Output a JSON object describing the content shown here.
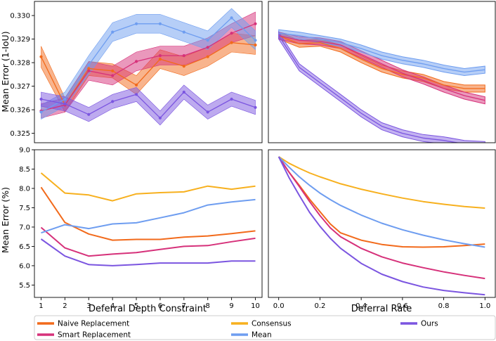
{
  "colors": {
    "naive": "#f26a1b",
    "smart": "#d6317a",
    "consensus": "#f7b01e",
    "mean": "#6e9df0",
    "ours": "#7b55e0",
    "axis": "#000000"
  },
  "legend": {
    "items": [
      {
        "key": "naive",
        "label": "Naive Replacement",
        "color": "#f26a1b"
      },
      {
        "key": "consensus",
        "label": "Consensus",
        "color": "#f7b01e"
      },
      {
        "key": "ours",
        "label": "Ours",
        "color": "#7b55e0"
      },
      {
        "key": "smart",
        "label": "Smart Replacement",
        "color": "#d6317a"
      },
      {
        "key": "mean",
        "label": "Mean",
        "color": "#6e9df0"
      }
    ]
  },
  "chart_data": [
    {
      "id": "top_left",
      "type": "line",
      "title": "",
      "xlabel": "",
      "ylabel": "Mean Error (1-IoU)",
      "xlim": [
        0.72,
        10.28
      ],
      "ylim": [
        0.3246,
        0.3306
      ],
      "xticks": [],
      "yticks": [
        0.325,
        0.326,
        0.327,
        0.328,
        0.329,
        0.33
      ],
      "ytick_labels": [
        "0.325",
        "0.326",
        "0.327",
        "0.328",
        "0.329",
        "0.330"
      ],
      "x": [
        1,
        2,
        3,
        4,
        5,
        6,
        7,
        8,
        9,
        10
      ],
      "series": [
        {
          "key": "naive",
          "name": "Naive Replacement",
          "markers": true,
          "values": [
            0.32825,
            0.3262,
            0.32775,
            0.32765,
            0.32705,
            0.32815,
            0.32785,
            0.32825,
            0.32885,
            0.32875
          ],
          "band": [
            0.00045,
            0.0003,
            0.0003,
            0.0003,
            0.0004,
            0.0004,
            0.0004,
            0.0004,
            0.0004,
            0.0004
          ]
        },
        {
          "key": "smart",
          "name": "Smart Replacement",
          "markers": true,
          "values": [
            0.32595,
            0.3262,
            0.32765,
            0.32745,
            0.32805,
            0.3283,
            0.3283,
            0.32865,
            0.32925,
            0.32965
          ],
          "band": [
            0.0003,
            0.0003,
            0.0004,
            0.0004,
            0.0004,
            0.0004,
            0.0004,
            0.0004,
            0.0004,
            0.0005
          ]
        },
        {
          "key": "mean",
          "name": "Mean",
          "markers": true,
          "values": [
            0.3259,
            0.32645,
            0.3279,
            0.3293,
            0.32965,
            0.32965,
            0.3293,
            0.32895,
            0.3299,
            0.32895
          ],
          "band": [
            0.0003,
            0.0003,
            0.0004,
            0.0004,
            0.0004,
            0.0004,
            0.0004,
            0.0004,
            0.0004,
            0.0004
          ]
        },
        {
          "key": "ours",
          "name": "Ours",
          "markers": true,
          "values": [
            0.32645,
            0.32625,
            0.3258,
            0.32635,
            0.32665,
            0.32565,
            0.32675,
            0.3259,
            0.32645,
            0.3261
          ],
          "band": [
            0.0003,
            0.0003,
            0.0003,
            0.0003,
            0.0003,
            0.0003,
            0.0003,
            0.0003,
            0.0003,
            0.0003
          ]
        }
      ]
    },
    {
      "id": "top_right",
      "type": "line",
      "title": "",
      "xlabel": "",
      "ylabel": "",
      "xlim": [
        -0.05,
        1.05
      ],
      "ylim": [
        0.3246,
        0.3306
      ],
      "xticks": [],
      "yticks": [],
      "x": [
        0,
        0.1,
        0.2,
        0.3,
        0.4,
        0.5,
        0.6,
        0.7,
        0.8,
        0.9,
        1.0
      ],
      "series": [
        {
          "key": "naive",
          "name": "Naive Replacement",
          "markers": false,
          "values": [
            0.32915,
            0.3288,
            0.32885,
            0.3286,
            0.32815,
            0.32775,
            0.3275,
            0.32735,
            0.32705,
            0.3269,
            0.3269
          ],
          "band": [
            0.00015,
            0.00015,
            0.00015,
            0.00015,
            0.00015,
            0.00015,
            0.00015,
            0.00015,
            0.00015,
            0.00015,
            0.00015
          ]
        },
        {
          "key": "smart",
          "name": "Smart Replacement",
          "markers": false,
          "values": [
            0.32915,
            0.32895,
            0.3289,
            0.32875,
            0.32835,
            0.32795,
            0.32755,
            0.32725,
            0.3269,
            0.3266,
            0.3264
          ],
          "band": [
            0.00015,
            0.00015,
            0.00015,
            0.00015,
            0.00015,
            0.00015,
            0.00015,
            0.00015,
            0.00015,
            0.00015,
            0.00015
          ]
        },
        {
          "key": "mean",
          "name": "Mean",
          "markers": false,
          "values": [
            0.32925,
            0.32915,
            0.329,
            0.32885,
            0.3286,
            0.3283,
            0.3281,
            0.32795,
            0.32775,
            0.3276,
            0.3277
          ],
          "band": [
            0.00015,
            0.00015,
            0.00015,
            0.00015,
            0.00015,
            0.00015,
            0.00015,
            0.00015,
            0.00015,
            0.00015,
            0.00015
          ]
        },
        {
          "key": "ours",
          "name": "Ours",
          "markers": false,
          "values": [
            0.32915,
            0.3278,
            0.32715,
            0.3265,
            0.32585,
            0.3253,
            0.325,
            0.3248,
            0.3247,
            0.32455,
            0.3245
          ],
          "band": [
            0.00015,
            0.00015,
            0.00015,
            0.00015,
            0.00015,
            0.00015,
            0.00015,
            0.00015,
            0.00015,
            0.00015,
            0.00015
          ]
        }
      ]
    },
    {
      "id": "bottom_left",
      "type": "line",
      "title": "",
      "xlabel": "Deferral Depth Constraint",
      "ylabel": "Mean Error (%)",
      "xlim": [
        0.72,
        10.28
      ],
      "ylim": [
        5.18,
        9.0
      ],
      "xticks": [
        1,
        2,
        3,
        4,
        5,
        6,
        7,
        8,
        9,
        10
      ],
      "xtick_labels": [
        "1",
        "2",
        "3",
        "4",
        "5",
        "6",
        "7",
        "8",
        "9",
        "10"
      ],
      "yticks": [
        5.5,
        6.0,
        6.5,
        7.0,
        7.5,
        8.0,
        8.5,
        9.0
      ],
      "ytick_labels": [
        "5.5",
        "6.0",
        "6.5",
        "7.0",
        "7.5",
        "8.0",
        "8.5",
        "9.0"
      ],
      "x": [
        1,
        2,
        3,
        4,
        5,
        6,
        7,
        8,
        9,
        10
      ],
      "series": [
        {
          "key": "naive",
          "name": "Naive Replacement",
          "markers": false,
          "values": [
            8.03,
            7.12,
            6.82,
            6.66,
            6.68,
            6.68,
            6.74,
            6.77,
            6.83,
            6.9
          ]
        },
        {
          "key": "smart",
          "name": "Smart Replacement",
          "markers": false,
          "values": [
            6.99,
            6.46,
            6.25,
            6.3,
            6.34,
            6.42,
            6.5,
            6.52,
            6.62,
            6.71
          ]
        },
        {
          "key": "consensus",
          "name": "Consensus",
          "markers": false,
          "values": [
            8.4,
            7.88,
            7.83,
            7.68,
            7.86,
            7.89,
            7.91,
            8.06,
            7.98,
            8.06
          ]
        },
        {
          "key": "mean",
          "name": "Mean",
          "markers": false,
          "values": [
            6.85,
            7.06,
            6.96,
            7.08,
            7.11,
            7.24,
            7.37,
            7.57,
            7.65,
            7.71
          ]
        },
        {
          "key": "ours",
          "name": "Ours",
          "markers": false,
          "values": [
            6.69,
            6.25,
            6.03,
            6.0,
            6.03,
            6.07,
            6.07,
            6.07,
            6.12,
            6.12
          ]
        }
      ]
    },
    {
      "id": "bottom_right",
      "type": "line",
      "title": "",
      "xlabel": "Deferral Rate",
      "ylabel": "",
      "xlim": [
        -0.05,
        1.05
      ],
      "ylim": [
        5.18,
        9.0
      ],
      "xticks": [
        0.0,
        0.2,
        0.4,
        0.6,
        0.8,
        1.0
      ],
      "xtick_labels": [
        "0.0",
        "0.2",
        "0.4",
        "0.6",
        "0.8",
        "1.0"
      ],
      "yticks": [],
      "x": [
        0,
        0.05,
        0.1,
        0.15,
        0.2,
        0.25,
        0.3,
        0.4,
        0.5,
        0.6,
        0.7,
        0.8,
        0.9,
        1.0
      ],
      "series": [
        {
          "key": "naive",
          "name": "Naive Replacement",
          "markers": false,
          "values": [
            8.82,
            8.42,
            8.08,
            7.72,
            7.4,
            7.08,
            6.85,
            6.66,
            6.55,
            6.49,
            6.48,
            6.49,
            6.52,
            6.56
          ]
        },
        {
          "key": "smart",
          "name": "Smart Replacement",
          "markers": false,
          "values": [
            8.82,
            8.42,
            8.05,
            7.66,
            7.3,
            6.98,
            6.75,
            6.45,
            6.23,
            6.07,
            5.95,
            5.84,
            5.75,
            5.67
          ]
        },
        {
          "key": "consensus",
          "name": "Consensus",
          "markers": false,
          "values": [
            8.82,
            8.65,
            8.52,
            8.4,
            8.3,
            8.21,
            8.12,
            7.98,
            7.86,
            7.75,
            7.66,
            7.59,
            7.53,
            7.49
          ]
        },
        {
          "key": "mean",
          "name": "Mean",
          "markers": false,
          "values": [
            8.82,
            8.55,
            8.3,
            8.08,
            7.88,
            7.71,
            7.56,
            7.31,
            7.1,
            6.93,
            6.79,
            6.67,
            6.57,
            6.48
          ]
        },
        {
          "key": "ours",
          "name": "Ours",
          "markers": false,
          "values": [
            8.82,
            8.28,
            7.82,
            7.38,
            7.02,
            6.71,
            6.45,
            6.06,
            5.78,
            5.59,
            5.45,
            5.36,
            5.3,
            5.25
          ]
        }
      ]
    }
  ]
}
